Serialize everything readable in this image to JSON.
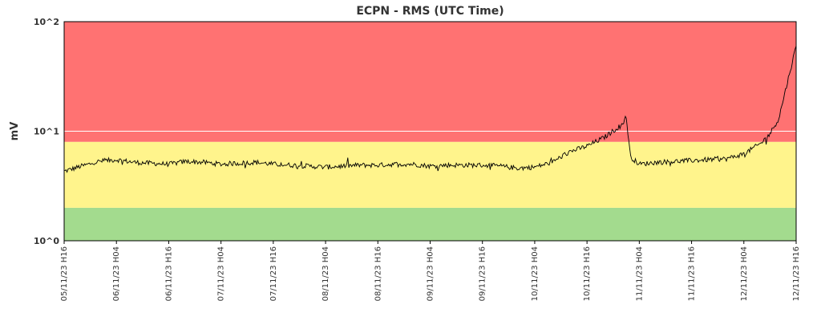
{
  "chart_data": {
    "type": "line",
    "title": "ECPN - RMS (UTC Time)",
    "xlabel": "",
    "ylabel": "mV",
    "y_scale": "log",
    "ylim": [
      1,
      100
    ],
    "yticks": [
      {
        "label": "10^0",
        "value": 1
      },
      {
        "label": "10^1",
        "value": 10
      },
      {
        "label": "10^2",
        "value": 100
      }
    ],
    "xlim": [
      "05/11/23 H16",
      "12/11/23 H16"
    ],
    "xticks": [
      "05/11/23 H16",
      "06/11/23 H04",
      "06/11/23 H16",
      "07/11/23 H04",
      "07/11/23 H16",
      "08/11/23 H04",
      "08/11/23 H16",
      "09/11/23 H04",
      "09/11/23 H16",
      "10/11/23 H04",
      "10/11/23 H16",
      "11/11/23 H04",
      "11/11/23 H16",
      "12/11/23 H04",
      "12/11/23 H16"
    ],
    "grid": false,
    "legend": "none",
    "threshold_bands": [
      {
        "from": 1,
        "to": 2,
        "color": "#a3db8e"
      },
      {
        "from": 2,
        "to": 8,
        "color": "#fff48c"
      },
      {
        "from": 8,
        "to": 100,
        "color": "#ff7272"
      }
    ],
    "series": [
      {
        "color": "#000000",
        "x": [
          "05/11/23 H16",
          "05/11/23 H20",
          "06/11/23 H00",
          "06/11/23 H04",
          "06/11/23 H08",
          "06/11/23 H12",
          "06/11/23 H16",
          "06/11/23 H20",
          "07/11/23 H00",
          "07/11/23 H04",
          "07/11/23 H08",
          "07/11/23 H12",
          "07/11/23 H16",
          "07/11/23 H20",
          "08/11/23 H00",
          "08/11/23 H04",
          "08/11/23 H08",
          "08/11/23 H12",
          "08/11/23 H16",
          "08/11/23 H20",
          "09/11/23 H00",
          "09/11/23 H04",
          "09/11/23 H08",
          "09/11/23 H12",
          "09/11/23 H16",
          "09/11/23 H20",
          "10/11/23 H00",
          "10/11/23 H04",
          "10/11/23 H08",
          "10/11/23 H12",
          "10/11/23 H16",
          "10/11/23 H20",
          "11/11/23 H00",
          "11/11/23 H01",
          "11/11/23 H02",
          "11/11/23 H04",
          "11/11/23 H08",
          "11/11/23 H12",
          "11/11/23 H16",
          "11/11/23 H20",
          "12/11/23 H00",
          "12/11/23 H04",
          "12/11/23 H08",
          "12/11/23 H10",
          "12/11/23 H12",
          "12/11/23 H14",
          "12/11/23 H16"
        ],
        "y": [
          4.3,
          4.8,
          5.3,
          5.5,
          5.2,
          5.1,
          5.0,
          5.3,
          5.2,
          5.0,
          5.1,
          5.2,
          5.0,
          4.9,
          4.8,
          4.7,
          4.8,
          4.9,
          4.9,
          5.0,
          5.0,
          4.8,
          4.9,
          4.9,
          4.9,
          4.8,
          4.6,
          4.7,
          5.2,
          6.5,
          7.3,
          8.8,
          11.5,
          13.5,
          5.8,
          5.0,
          5.2,
          5.3,
          5.4,
          5.5,
          5.6,
          6.2,
          7.8,
          9.5,
          13.0,
          28.0,
          60.0
        ]
      }
    ]
  }
}
